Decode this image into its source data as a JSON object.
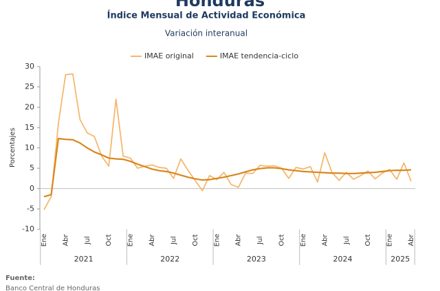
{
  "chart_data": {
    "type": "line",
    "title": "Honduras",
    "subtitle": "Índice Mensual de Actividad Económica",
    "subtitle2": "Variación interanual",
    "y_label": "Porcentajes",
    "categories": [
      "Ene",
      null,
      null,
      "Abr",
      null,
      null,
      "Jul",
      null,
      null,
      "Oct",
      null,
      null,
      "Ene",
      null,
      null,
      "Abr",
      null,
      null,
      "Jul",
      null,
      null,
      "Oct",
      null,
      null,
      "Ene",
      null,
      null,
      "Abr",
      null,
      null,
      "Jul",
      null,
      null,
      "Oct",
      null,
      null,
      "Ene",
      null,
      null,
      "Abr",
      null,
      null,
      "Jul",
      null,
      null,
      "Oct",
      null,
      null,
      "Ene",
      null,
      null,
      "Abr"
    ],
    "years": [
      "2021",
      "2022",
      "2023",
      "2024",
      "2025"
    ],
    "series": [
      {
        "name": "IMAE original",
        "color": "#f5b76e",
        "values": [
          -5.2,
          -2,
          16,
          28,
          28.2,
          17,
          13.7,
          12.8,
          8,
          5.5,
          22,
          8,
          7.5,
          5,
          5.5,
          5.8,
          5.2,
          5,
          2.5,
          7.3,
          4.5,
          2,
          -0.5,
          3.2,
          2.2,
          4,
          1,
          0.3,
          3.8,
          3.7,
          5.7,
          5.5,
          5.6,
          5,
          2.5,
          5.2,
          4.8,
          5.4,
          1.6,
          8.8,
          4,
          2,
          4,
          2.3,
          3.2,
          4.3,
          2.4,
          3.8,
          4.7,
          2.3,
          6.3,
          1.8
        ]
      },
      {
        "name": "IMAE tendencia-ciclo",
        "color": "#d9861c",
        "values": [
          -2,
          -1.5,
          12.3,
          12.1,
          12,
          11.2,
          10,
          9,
          8.3,
          7.5,
          7.3,
          7.2,
          6.7,
          6,
          5.4,
          4.8,
          4.4,
          4.2,
          3.8,
          3.3,
          2.8,
          2.4,
          2.1,
          2.2,
          2.5,
          2.8,
          3.2,
          3.6,
          4.1,
          4.6,
          4.9,
          5.1,
          5.1,
          4.9,
          4.6,
          4.4,
          4.2,
          4.1,
          4,
          3.9,
          3.8,
          3.8,
          3.7,
          3.7,
          3.8,
          3.9,
          4,
          4.2,
          4.4,
          4.5,
          4.5,
          4.6
        ]
      }
    ],
    "ylim": [
      -10,
      30
    ],
    "yticks": [
      -10,
      -5,
      0,
      5,
      10,
      15,
      20,
      25,
      30
    ],
    "source_title": "Fuente:",
    "source": "Banco Central de Honduras"
  }
}
